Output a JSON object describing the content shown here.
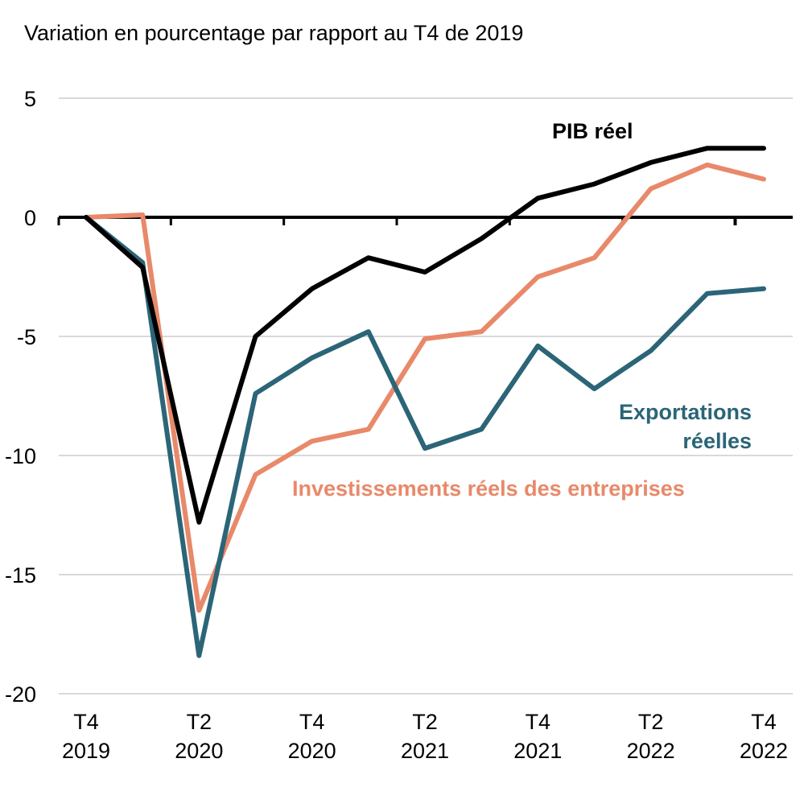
{
  "chart_data": {
    "type": "line",
    "title": "Variation en pourcentage par rapport au T4 de 2019",
    "xlabel": "",
    "ylabel": "",
    "ylim": [
      -20,
      5
    ],
    "yticks": [
      "5",
      "0",
      "-5",
      "-10",
      "-15",
      "-20"
    ],
    "ytick_values": [
      5,
      0,
      -5,
      -10,
      -15,
      -20
    ],
    "x": [
      "T4 2019",
      "T1 2020",
      "T2 2020",
      "T3 2020",
      "T4 2020",
      "T1 2021",
      "T2 2021",
      "T3 2021",
      "T4 2021",
      "T1 2022",
      "T2 2022",
      "T3 2022",
      "T4 2022"
    ],
    "xtick_labels": [
      {
        "index": 0,
        "line1": "T4",
        "line2": "2019"
      },
      {
        "index": 2,
        "line1": "T2",
        "line2": "2020"
      },
      {
        "index": 4,
        "line1": "T4",
        "line2": "2020"
      },
      {
        "index": 6,
        "line1": "T2",
        "line2": "2021"
      },
      {
        "index": 8,
        "line1": "T4",
        "line2": "2021"
      },
      {
        "index": 10,
        "line1": "T2",
        "line2": "2022"
      },
      {
        "index": 12,
        "line1": "T4",
        "line2": "2022"
      }
    ],
    "grid": true,
    "series": [
      {
        "name": "PIB réel",
        "color": "#000000",
        "values": [
          0,
          -2.1,
          -12.8,
          -5.0,
          -3.0,
          -1.7,
          -2.3,
          -0.9,
          0.8,
          1.4,
          2.3,
          2.9,
          2.9
        ],
        "label_lines": [
          "PIB réel"
        ]
      },
      {
        "name": "Investissements réels des entreprises",
        "color": "#E8896A",
        "values": [
          0,
          0.1,
          -16.5,
          -10.8,
          -9.4,
          -8.9,
          -5.1,
          -4.8,
          -2.5,
          -1.7,
          1.2,
          2.2,
          1.6
        ],
        "label_lines": [
          "Investissements réels des entreprises"
        ]
      },
      {
        "name": "Exportations réelles",
        "color": "#2B6577",
        "values": [
          0,
          -1.9,
          -18.4,
          -7.4,
          -5.9,
          -4.8,
          -9.7,
          -8.9,
          -5.4,
          -7.2,
          -5.6,
          -3.2,
          -3.0
        ],
        "label_lines": [
          "Exportations",
          "réelles"
        ]
      }
    ]
  }
}
